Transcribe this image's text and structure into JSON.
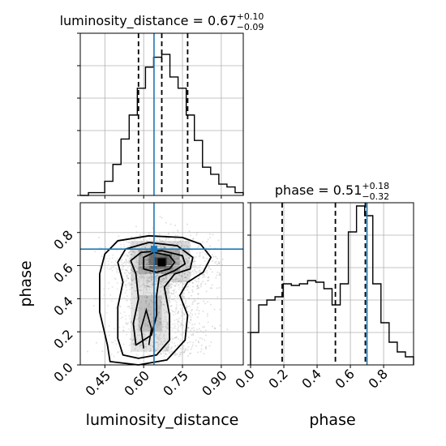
{
  "chart_data": [
    {
      "type": "histogram",
      "panel": "luminosity_distance marginal",
      "title": {
        "param": "luminosity_distance",
        "median": "0.67",
        "plus": "+0.10",
        "minus": "−0.09"
      },
      "x": {
        "label": "",
        "lim": [
          0.355,
          0.985
        ],
        "ticks": [
          0.45,
          0.6,
          0.75,
          0.9
        ]
      },
      "bins": {
        "start": 0.355,
        "width": 0.0315,
        "counts": [
          0,
          0.02,
          0.02,
          0.1,
          0.22,
          0.4,
          0.57,
          0.76,
          0.91,
          0.98,
          1.0,
          0.84,
          0.76,
          0.57,
          0.39,
          0.2,
          0.15,
          0.08,
          0.06,
          0.02
        ]
      },
      "quantile_lines": [
        0.58,
        0.67,
        0.77
      ],
      "truth": 0.64,
      "grid": true
    },
    {
      "type": "histogram",
      "panel": "phase marginal",
      "title": {
        "param": "phase",
        "median": "0.51",
        "plus": "+0.18",
        "minus": "−0.32"
      },
      "x": {
        "label": "phase",
        "lim": [
          0.0,
          0.98
        ],
        "ticks": [
          0.0,
          0.2,
          0.4,
          0.6,
          0.8
        ]
      },
      "bins": {
        "start": 0.0,
        "width": 0.049,
        "counts": [
          0.2,
          0.37,
          0.4,
          0.42,
          0.5,
          0.49,
          0.5,
          0.52,
          0.51,
          0.47,
          0.37,
          0.5,
          0.82,
          0.98,
          0.92,
          0.5,
          0.26,
          0.14,
          0.08,
          0.05
        ]
      },
      "quantile_lines": [
        0.19,
        0.51,
        0.69
      ],
      "truth": 0.7,
      "grid": true
    },
    {
      "type": "contour",
      "panel": "luminosity_distance vs phase",
      "x": {
        "label": "luminosity_distance",
        "lim": [
          0.355,
          0.985
        ],
        "ticks": [
          0.45,
          0.6,
          0.75,
          0.9
        ],
        "tick_labels": [
          "0.45",
          "0.60",
          "0.75",
          "0.90"
        ]
      },
      "y": {
        "label": "phase",
        "lim": [
          0.0,
          0.98
        ],
        "ticks": [
          0.0,
          0.2,
          0.4,
          0.6,
          0.8
        ],
        "tick_labels": [
          "0.0",
          "0.2",
          "0.4",
          "0.6",
          "0.8"
        ]
      },
      "peak": {
        "x": 0.67,
        "y": 0.62
      },
      "truth": {
        "x": 0.64,
        "y": 0.7
      },
      "contours": [
        [
          [
            0.47,
            0.02
          ],
          [
            0.46,
            0.12
          ],
          [
            0.43,
            0.32
          ],
          [
            0.43,
            0.55
          ],
          [
            0.45,
            0.67
          ],
          [
            0.5,
            0.75
          ],
          [
            0.62,
            0.78
          ],
          [
            0.75,
            0.77
          ],
          [
            0.82,
            0.73
          ],
          [
            0.86,
            0.65
          ],
          [
            0.83,
            0.56
          ],
          [
            0.77,
            0.5
          ],
          [
            0.74,
            0.42
          ],
          [
            0.77,
            0.3
          ],
          [
            0.76,
            0.15
          ],
          [
            0.69,
            0.03
          ],
          [
            0.58,
            0.0
          ]
        ],
        [
          [
            0.52,
            0.06
          ],
          [
            0.5,
            0.16
          ],
          [
            0.5,
            0.35
          ],
          [
            0.52,
            0.5
          ],
          [
            0.5,
            0.62
          ],
          [
            0.53,
            0.7
          ],
          [
            0.62,
            0.74
          ],
          [
            0.73,
            0.72
          ],
          [
            0.79,
            0.65
          ],
          [
            0.78,
            0.58
          ],
          [
            0.72,
            0.55
          ],
          [
            0.68,
            0.47
          ],
          [
            0.7,
            0.3
          ],
          [
            0.7,
            0.15
          ],
          [
            0.65,
            0.06
          ],
          [
            0.58,
            0.04
          ]
        ],
        [
          [
            0.57,
            0.12
          ],
          [
            0.56,
            0.25
          ],
          [
            0.58,
            0.4
          ],
          [
            0.57,
            0.55
          ],
          [
            0.55,
            0.63
          ],
          [
            0.59,
            0.68
          ],
          [
            0.67,
            0.69
          ],
          [
            0.75,
            0.66
          ],
          [
            0.76,
            0.61
          ],
          [
            0.72,
            0.57
          ],
          [
            0.66,
            0.53
          ],
          [
            0.65,
            0.42
          ],
          [
            0.65,
            0.3
          ],
          [
            0.63,
            0.18
          ],
          [
            0.6,
            0.15
          ]
        ],
        [
          [
            0.6,
            0.58
          ],
          [
            0.6,
            0.65
          ],
          [
            0.64,
            0.68
          ],
          [
            0.7,
            0.66
          ],
          [
            0.72,
            0.62
          ],
          [
            0.7,
            0.58
          ],
          [
            0.65,
            0.56
          ]
        ]
      ],
      "grid": true
    }
  ]
}
